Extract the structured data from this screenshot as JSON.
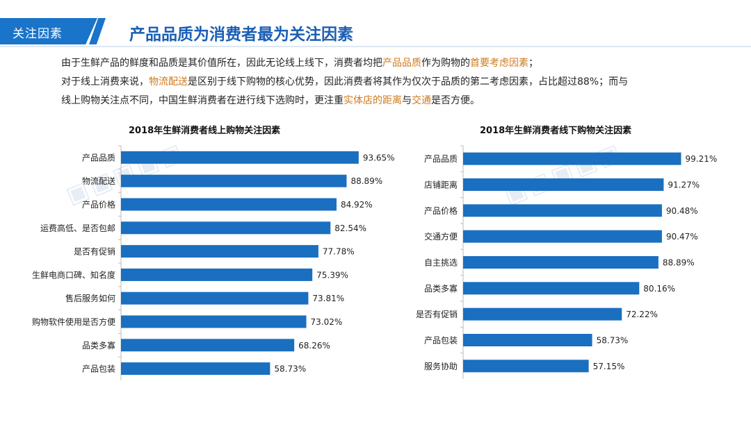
{
  "header": {
    "tag": "关注因素",
    "title": "产品品质为消费者最为关注因素"
  },
  "intro": {
    "l1a": "由于生鲜产品的鲜度和品质是其价值所在，因此无论线上线下，消费者均把",
    "l1b": "产品品质",
    "l1c": "作为购物的",
    "l1d": "首要考虑因素",
    "l1e": "；",
    "l2a": "对于线上消费来说，",
    "l2b": "物流配送",
    "l2c": "是区别于线下购物的核心优势，因此消费者将其作为仅次于品质的第二考虑因素，占比超过88%；而与",
    "l3a": "线上购物关注点不同，中国生鲜消费者在进行线下选购时，更注重",
    "l3b": "实体店的距离",
    "l3c": "与",
    "l3d": "交通",
    "l3e": "是否方便。"
  },
  "colors": {
    "bar": "#1a6fc0",
    "accent": "#d07a1b",
    "title": "#1a5fb4"
  },
  "chart_data": [
    {
      "type": "bar",
      "orientation": "horizontal",
      "title": "2018年生鲜消费者线上购物关注因素",
      "categories": [
        "产品品质",
        "物流配送",
        "产品价格",
        "运费高低、是否包邮",
        "是否有促销",
        "生鲜电商口碑、知名度",
        "售后服务如何",
        "购物软件使用是否方便",
        "品类多寡",
        "产品包装"
      ],
      "values": [
        93.65,
        88.89,
        84.92,
        82.54,
        77.78,
        75.39,
        73.81,
        73.02,
        68.26,
        58.73
      ],
      "labels": [
        "93.65%",
        "88.89%",
        "84.92%",
        "82.54%",
        "77.78%",
        "75.39%",
        "73.81%",
        "73.02%",
        "68.26%",
        "58.73%"
      ],
      "xlim": [
        0,
        100
      ],
      "xlabel": "",
      "ylabel": ""
    },
    {
      "type": "bar",
      "orientation": "horizontal",
      "title": "2018年生鲜消费者线下购物关注因素",
      "categories": [
        "产品品质",
        "店铺距离",
        "产品价格",
        "交通方便",
        "自主挑选",
        "品类多寡",
        "是否有促销",
        "产品包装",
        "服务协助"
      ],
      "values": [
        99.21,
        91.27,
        90.48,
        90.47,
        88.89,
        80.16,
        72.22,
        58.73,
        57.15
      ],
      "labels": [
        "99.21%",
        "91.27%",
        "90.48%",
        "90.47%",
        "88.89%",
        "80.16%",
        "72.22%",
        "58.73%",
        "57.15%"
      ],
      "xlim": [
        0,
        100
      ],
      "xlabel": "",
      "ylabel": ""
    }
  ]
}
